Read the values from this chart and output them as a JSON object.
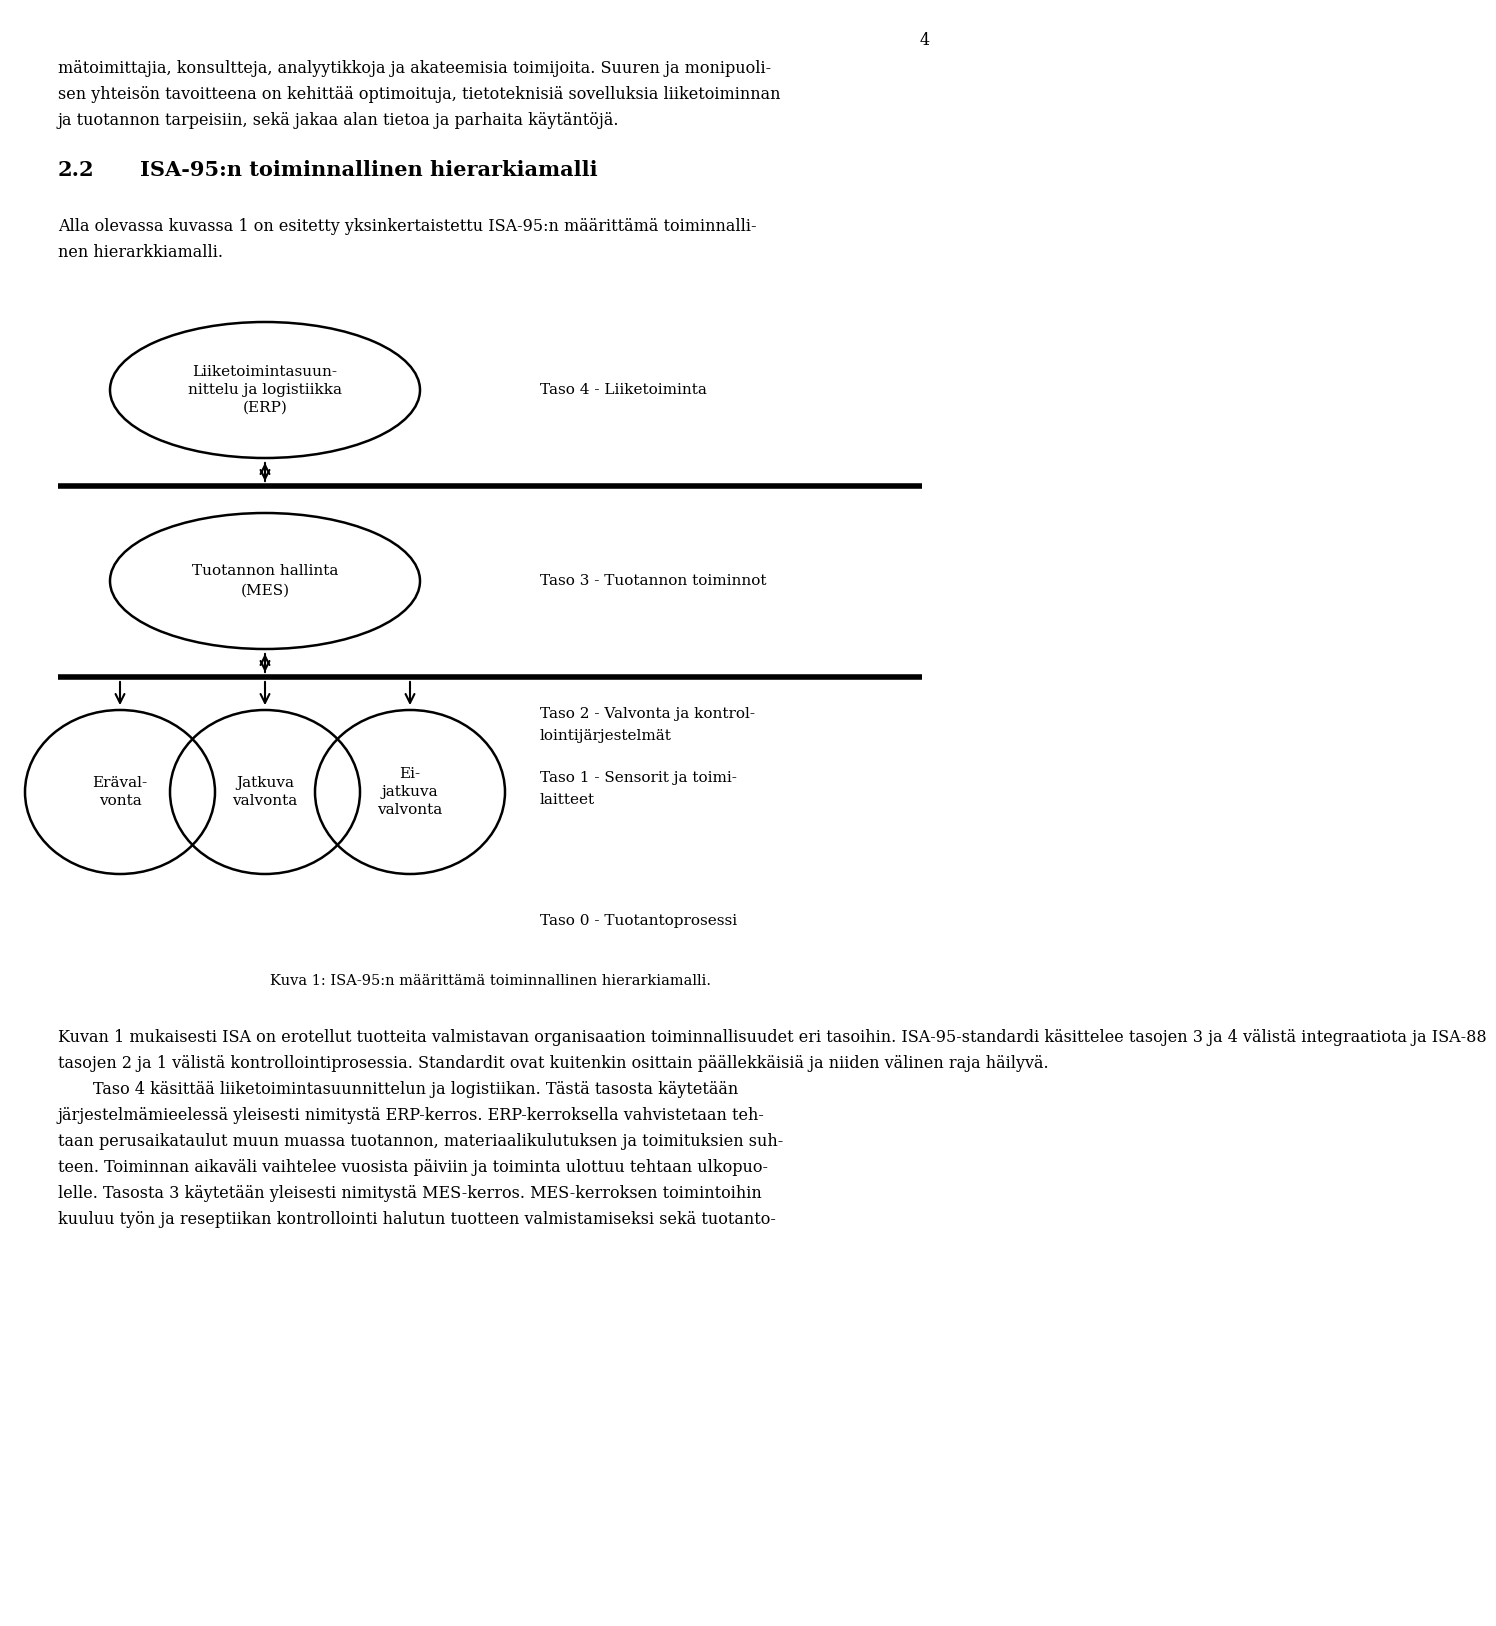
{
  "page_number": "4",
  "bg_color": "#ffffff",
  "text_color": "#000000",
  "top_text_lines": [
    "mätoimittajia, konsultteja, analyytikkoja ja akateemisia toimijoita. Suuren ja monipuoli-",
    "sen yhteisön tavoitteena on kehittää optimoituja, tietoteknisiä sovelluksia liiketoiminnan",
    "ja tuotannon tarpeisiin, sekä jakaa alan tietoa ja parhaita käytäntöjä."
  ],
  "section_heading": "2.2   ISA-95:n toiminnallinen hierarkiamalli",
  "intro_lines": [
    "Alla olevassa kuvassa 1 on esitetty yksinkertaistettu ISA-95:n määrittämä toiminnalli-",
    "nen hierarkkiamalli."
  ],
  "erp_text": [
    "Liiketoimintasuun-",
    "nittelu ja logistiikka",
    "(ERP)"
  ],
  "mes_text": [
    "Tuotannon hallinta",
    "(MES)"
  ],
  "box1_text": [
    "Eräval-",
    "vonta"
  ],
  "box2_text": [
    "Jatkuva",
    "valvonta"
  ],
  "box3_text": [
    "Ei-",
    "jatkuva",
    "valvonta"
  ],
  "taso4": "Taso 4 - Liiketoiminta",
  "taso3": "Taso 3 - Tuotannon toiminnot",
  "taso2_line1": "Taso 2 - Valvonta ja kontrol-",
  "taso2_line2": "lointijärjestelmät",
  "taso1_line1": "Taso 1 - Sensorit ja toimi-",
  "taso1_line2": "laitteet",
  "taso0": "Taso 0 - Tuotantoprosessi",
  "caption": "Kuva 1: ISA-95:n määrittämä toiminnallinen hierarkiamalli.",
  "bottom_lines": [
    "Kuvan 1 mukaisesti ISA on erotellut tuotteita valmistavan organisaation toiminnallisuudet eri tasoihin. ISA-95-standardi käsittelee tasojen 3 ja 4 välistä integraatiota ja ISA-88",
    "tasojen 2 ja 1 välistä kontrollointiprosessia. Standardit ovat kuitenkin osittain päällekkäisiä ja niiden välinen raja häilyvä.",
    "\tTaso 4 käsittää liiketoimintasuunnittelun ja logistiikan. Tästä tasosta käytetään",
    "järjestelmämieelessä yleisesti nimitystä ERP-kerros. ERP-kerroksella vahvistetaan teh-",
    "taan perusaikataulut muun muassa tuotannon, materiaalikulutuksen ja toimituksien suh-",
    "teen. Toiminnan aikaväli vaihtelee vuosista päiviin ja toiminta ulottuu tehtaan ulkopuo-",
    "lelle. Tasosta 3 käytetään yleisesti nimitystä MES-kerros. MES-kerroksen toimintoihin",
    "kuuluu työn ja reseptiikan kontrollointi halutun tuotteen valmistamiseksi sekä tuotanto-"
  ],
  "body_fontsize": 11.5,
  "heading_fontsize": 15,
  "diagram_fontsize": 11,
  "caption_fontsize": 10.5
}
